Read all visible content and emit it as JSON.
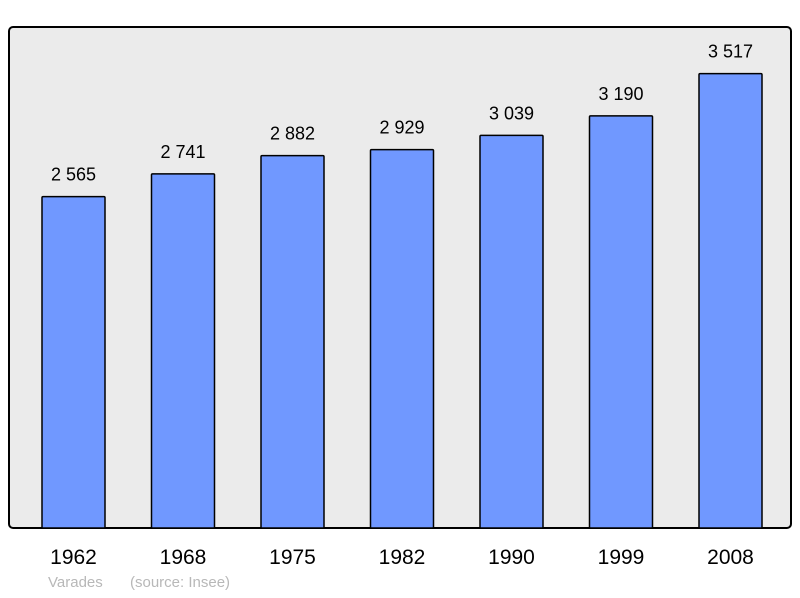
{
  "chart_data": {
    "type": "bar",
    "categories": [
      "1962",
      "1968",
      "1975",
      "1982",
      "1990",
      "1999",
      "2008"
    ],
    "values": [
      2565,
      2741,
      2882,
      2929,
      3039,
      3190,
      3517
    ],
    "value_labels": [
      "2 565",
      "2 741",
      "2 882",
      "2 929",
      "3 039",
      "3 190",
      "3 517"
    ],
    "title": "",
    "xlabel": "",
    "ylabel": "",
    "ylim": [
      0,
      3870
    ],
    "grid": false,
    "bar_color": "#7098ff",
    "background_color": "#ebebeb"
  },
  "footer": {
    "place": "Varades",
    "source": "(source: Insee)"
  }
}
